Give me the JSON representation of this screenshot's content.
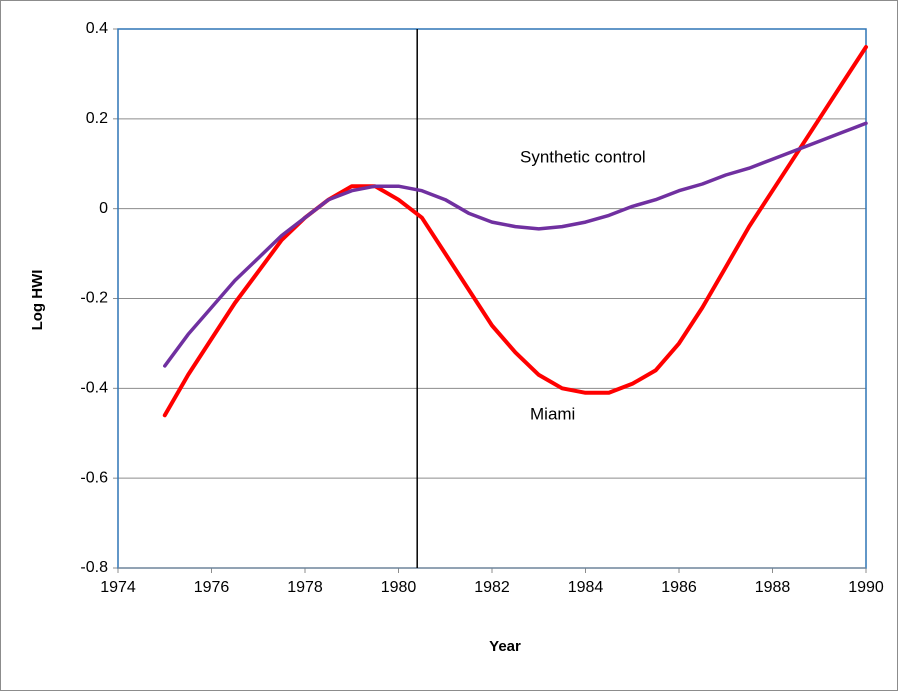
{
  "chart_data": {
    "type": "line",
    "x_label": "Year",
    "y_label": "Log HWI",
    "x": [
      1975,
      1975.5,
      1976,
      1976.5,
      1977,
      1977.5,
      1978,
      1978.5,
      1979,
      1979.5,
      1980,
      1980.5,
      1981,
      1981.5,
      1982,
      1982.5,
      1983,
      1983.5,
      1984,
      1984.5,
      1985,
      1985.5,
      1986,
      1986.5,
      1987,
      1987.5,
      1988,
      1988.5,
      1989,
      1989.5,
      1990
    ],
    "series": [
      {
        "name": "Miami",
        "color": "#ff0000",
        "values": [
          -0.46,
          -0.37,
          -0.29,
          -0.21,
          -0.14,
          -0.07,
          -0.02,
          0.02,
          0.05,
          0.05,
          0.02,
          -0.02,
          -0.1,
          -0.18,
          -0.26,
          -0.32,
          -0.37,
          -0.4,
          -0.41,
          -0.41,
          -0.39,
          -0.36,
          -0.3,
          -0.22,
          -0.13,
          -0.04,
          0.04,
          0.12,
          0.2,
          0.28,
          0.36
        ]
      },
      {
        "name": "Synthetic control",
        "color": "#7030a0",
        "values": [
          -0.35,
          -0.28,
          -0.22,
          -0.16,
          -0.11,
          -0.06,
          -0.02,
          0.02,
          0.04,
          0.05,
          0.05,
          0.04,
          0.02,
          -0.01,
          -0.03,
          -0.04,
          -0.045,
          -0.04,
          -0.03,
          -0.015,
          0.005,
          0.02,
          0.04,
          0.055,
          0.075,
          0.09,
          0.11,
          0.13,
          0.15,
          0.17,
          0.19
        ]
      }
    ],
    "reference_line_x": 1980.4,
    "xlim": [
      1974,
      1990
    ],
    "xticks": [
      1974,
      1976,
      1978,
      1980,
      1982,
      1984,
      1986,
      1988,
      1990
    ],
    "ylim": [
      -0.8,
      0.4
    ],
    "yticks": [
      0.4,
      0.2,
      0,
      -0.2,
      -0.4,
      -0.6,
      -0.8
    ],
    "grid": true
  }
}
